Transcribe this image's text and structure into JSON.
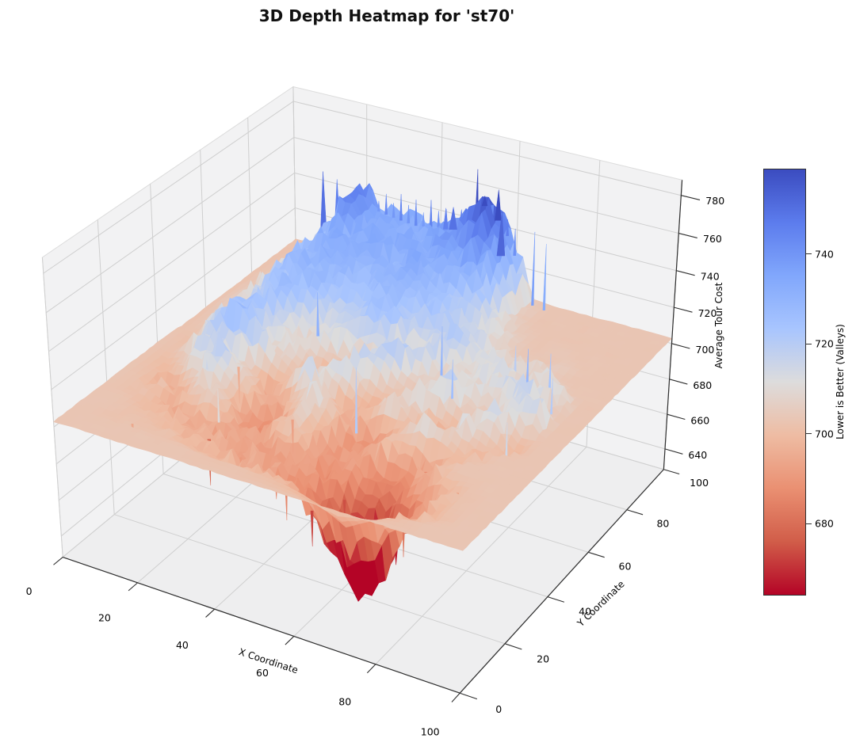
{
  "title": "3D Depth Heatmap for 'st70'",
  "chart_data": {
    "type": "3d_surface",
    "title": "3D Depth Heatmap for 'st70'",
    "xlabel": "X Coordinate",
    "ylabel": "Y Coordinate",
    "zlabel": "Average Tour Cost",
    "x_range": [
      0,
      100
    ],
    "y_range": [
      0,
      100
    ],
    "z_axis_range": [
      628,
      788
    ],
    "x_ticks": [
      0,
      20,
      40,
      60,
      80,
      100
    ],
    "y_ticks": [
      0,
      20,
      40,
      60,
      80,
      100
    ],
    "z_ticks": [
      640,
      660,
      680,
      700,
      720,
      740,
      760,
      780
    ],
    "colormap": "coolwarm_r",
    "colormap_stops": [
      [
        59,
        76,
        192
      ],
      [
        92,
        124,
        237
      ],
      [
        129,
        167,
        252
      ],
      [
        168,
        197,
        254
      ],
      [
        221,
        220,
        220
      ],
      [
        238,
        188,
        163
      ],
      [
        234,
        144,
        114
      ],
      [
        209,
        93,
        73
      ],
      [
        180,
        4,
        38
      ]
    ],
    "color_range": [
      664,
      759
    ],
    "grid_x": [
      0,
      5,
      10,
      15,
      20,
      25,
      30,
      35,
      40,
      45,
      50,
      55,
      60,
      65,
      70,
      75,
      80,
      85,
      90,
      95,
      100
    ],
    "grid_y": [
      0,
      5,
      10,
      15,
      20,
      25,
      30,
      35,
      40,
      45,
      50,
      55,
      60,
      65,
      70,
      75,
      80,
      85,
      90,
      95,
      100
    ],
    "z_grid": [
      [
        703,
        703,
        703,
        703,
        703,
        703,
        703,
        703,
        703,
        703,
        703,
        703,
        703,
        703,
        703,
        703,
        703,
        703,
        703,
        703,
        703
      ],
      [
        703,
        703,
        703,
        703,
        703,
        703,
        703,
        702,
        702,
        702,
        701,
        700,
        698,
        694,
        688,
        694,
        700,
        702,
        703,
        703,
        703
      ],
      [
        703,
        703,
        702,
        702,
        701,
        700,
        699,
        698,
        697,
        695,
        693,
        690,
        678,
        661,
        646,
        653,
        683,
        695,
        701,
        703,
        703
      ],
      [
        703,
        703,
        702,
        701,
        700,
        698,
        696,
        696,
        695,
        694,
        691,
        688,
        683,
        669,
        655,
        663,
        689,
        697,
        702,
        703,
        703
      ],
      [
        703,
        702,
        701,
        699,
        697,
        694,
        692,
        694,
        693,
        690,
        691,
        690,
        687,
        679,
        672,
        681,
        691,
        698,
        702,
        703,
        703
      ],
      [
        703,
        702,
        699,
        696,
        702,
        708,
        696,
        689,
        698,
        705,
        695,
        690,
        696,
        687,
        684,
        692,
        699,
        703,
        703,
        703,
        703
      ],
      [
        703,
        701,
        696,
        703,
        711,
        704,
        692,
        685,
        696,
        708,
        698,
        686,
        692,
        703,
        695,
        691,
        698,
        703,
        703,
        703,
        703
      ],
      [
        703,
        700,
        703,
        715,
        721,
        710,
        698,
        691,
        702,
        712,
        702,
        693,
        688,
        699,
        709,
        714,
        702,
        697,
        703,
        703,
        703
      ],
      [
        703,
        702,
        709,
        718,
        712,
        703,
        696,
        704,
        714,
        705,
        694,
        700,
        710,
        703,
        692,
        699,
        711,
        704,
        698,
        703,
        703
      ],
      [
        703,
        701,
        712,
        724,
        728,
        716,
        706,
        698,
        708,
        718,
        706,
        696,
        704,
        716,
        708,
        700,
        708,
        714,
        702,
        703,
        703
      ],
      [
        702,
        703,
        714,
        726,
        720,
        708,
        713,
        704,
        696,
        710,
        721,
        712,
        702,
        708,
        720,
        710,
        703,
        711,
        718,
        703,
        703
      ],
      [
        702,
        704,
        712,
        718,
        725,
        714,
        706,
        716,
        708,
        702,
        714,
        723,
        710,
        706,
        712,
        708,
        714,
        720,
        706,
        703,
        703
      ],
      [
        702,
        705,
        710,
        719,
        726,
        723,
        717,
        712,
        719,
        724,
        715,
        710,
        717,
        713,
        708,
        715,
        710,
        704,
        713,
        703,
        703
      ],
      [
        702,
        706,
        712,
        722,
        727,
        726,
        723,
        720,
        725,
        727,
        721,
        716,
        721,
        718,
        713,
        710,
        706,
        711,
        704,
        703,
        703
      ],
      [
        702,
        705,
        713,
        725,
        729,
        730,
        727,
        724,
        728,
        729,
        725,
        722,
        719,
        714,
        709,
        706,
        709,
        704,
        703,
        703,
        703
      ],
      [
        702,
        704,
        715,
        727,
        731,
        732,
        730,
        727,
        729,
        730,
        728,
        723,
        720,
        712,
        707,
        704,
        703,
        705,
        703,
        703,
        703
      ],
      [
        702,
        704,
        713,
        728,
        732,
        733,
        732,
        730,
        731,
        732,
        730,
        726,
        721,
        710,
        705,
        703,
        704,
        703,
        703,
        703,
        703
      ],
      [
        702,
        703,
        712,
        727,
        732,
        734,
        733,
        732,
        733,
        734,
        733,
        737,
        725,
        708,
        704,
        703,
        703,
        703,
        703,
        703,
        703
      ],
      [
        702,
        703,
        710,
        725,
        746,
        734,
        733,
        732,
        733,
        735,
        739,
        745,
        731,
        706,
        703,
        703,
        703,
        703,
        703,
        703,
        703
      ],
      [
        702,
        703,
        708,
        721,
        750,
        735,
        733,
        732,
        734,
        737,
        749,
        756,
        737,
        705,
        703,
        703,
        703,
        703,
        703,
        703,
        703
      ],
      [
        702,
        703,
        706,
        718,
        742,
        733,
        732,
        731,
        733,
        735,
        745,
        750,
        733,
        704,
        703,
        703,
        703,
        703,
        703,
        703,
        703
      ]
    ],
    "spikes_up": [
      [
        25,
        97,
        740,
        1.6
      ],
      [
        27,
        97,
        745,
        1.6
      ],
      [
        29,
        97,
        741,
        1.6
      ],
      [
        31,
        97,
        747,
        1.6
      ],
      [
        33,
        97,
        742,
        1.6
      ],
      [
        35,
        97,
        746,
        1.6
      ],
      [
        37,
        97,
        740,
        1.6
      ],
      [
        39,
        97,
        748,
        1.6
      ],
      [
        41,
        97,
        743,
        1.6
      ],
      [
        43,
        97,
        745,
        1.6
      ],
      [
        45,
        97,
        741,
        1.6
      ],
      [
        47,
        97,
        747,
        1.6
      ],
      [
        49,
        97,
        742,
        1.6
      ],
      [
        53,
        97,
        746,
        1.6
      ],
      [
        55,
        97,
        741,
        1.6
      ],
      [
        59,
        97,
        748,
        1.6
      ],
      [
        61,
        97,
        744,
        1.6
      ],
      [
        66,
        97,
        745,
        1.4
      ],
      [
        69,
        97,
        740,
        1.4
      ],
      [
        14,
        90,
        757,
        4
      ],
      [
        16,
        93,
        751,
        3
      ],
      [
        51,
        97,
        771,
        1.6
      ],
      [
        54,
        95,
        760,
        3.5
      ],
      [
        57,
        96,
        764,
        4
      ],
      [
        60,
        92,
        757,
        5
      ],
      [
        47,
        93,
        752,
        5
      ],
      [
        44,
        95,
        748,
        3
      ],
      [
        85,
        57,
        733,
        1.4
      ],
      [
        88,
        62,
        727,
        1.2
      ],
      [
        34,
        54,
        736,
        1.6
      ],
      [
        72,
        47,
        730,
        1.2
      ],
      [
        90,
        38,
        718,
        1.2
      ],
      [
        20,
        30,
        716,
        1.2
      ],
      [
        65,
        55,
        735,
        1.4
      ],
      [
        78,
        65,
        722,
        1.4
      ],
      [
        92,
        55,
        724,
        1.2
      ],
      [
        10,
        45,
        715,
        1.2
      ],
      [
        55,
        35,
        728,
        1.4
      ],
      [
        28,
        22,
        714,
        1.2
      ]
    ],
    "spikes_down": [
      [
        30,
        15,
        671,
        2
      ],
      [
        60,
        8,
        667,
        1.6
      ],
      [
        78,
        12,
        665,
        2
      ],
      [
        82,
        8,
        677,
        1.4
      ],
      [
        55,
        6,
        680,
        1.4
      ],
      [
        50,
        10,
        683,
        1.6
      ],
      [
        62,
        18,
        671,
        1.6
      ],
      [
        35,
        30,
        683,
        1.4
      ],
      [
        15,
        8,
        691,
        1.2
      ],
      [
        88,
        20,
        687,
        1.4
      ],
      [
        75,
        30,
        685,
        1.8
      ],
      [
        45,
        25,
        687,
        1.4
      ],
      [
        68,
        22,
        676,
        1.8
      ],
      [
        72,
        18,
        669,
        2
      ],
      [
        40,
        12,
        688,
        1.4
      ],
      [
        25,
        35,
        690,
        1.4
      ],
      [
        58,
        45,
        692,
        1.4
      ]
    ],
    "noise_amplitude": 5,
    "upsample": 3,
    "flat_level": 703,
    "colorbar": {
      "label": "Lower is Better (Valleys)",
      "ticks": [
        680,
        700,
        720,
        740
      ],
      "range": [
        664,
        759
      ]
    }
  }
}
